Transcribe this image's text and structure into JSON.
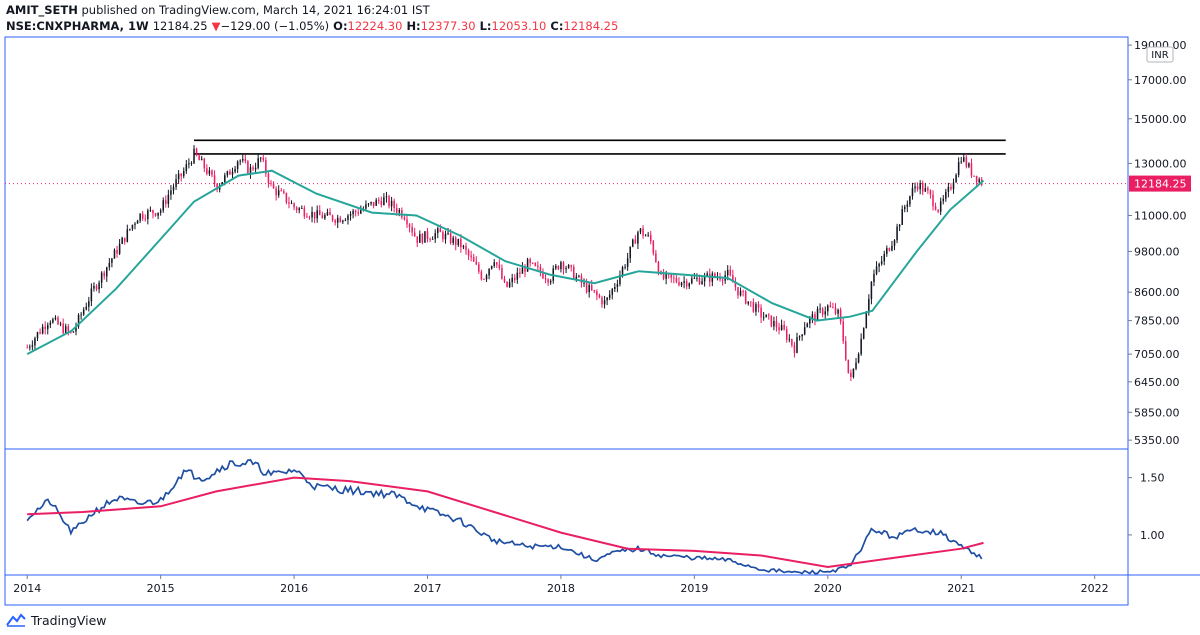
{
  "header": {
    "publisher": "AMIT_SETH",
    "published_text": "published on TradingView.com, March 14, 2021 16:24:01 IST",
    "symbol": "NSE:CNXPHARMA, 1W",
    "last_price": "12184.25",
    "change_arrow": "▼",
    "change": "−129.00 (−1.05%)",
    "o_label": "O:",
    "o_value": "12224.30",
    "h_label": "H:",
    "h_value": "12377.30",
    "l_label": "L:",
    "l_value": "12053.10",
    "c_label": "C:",
    "c_value": "12184.25"
  },
  "colors": {
    "up": "#131722",
    "down": "#e91e63",
    "ma": "#26a69a",
    "ratio": "#1f4fa3",
    "ratio_ma": "#e91e63",
    "price_label_bg": "#e91e63",
    "hline": "#000000",
    "axis_border": "#2962ff"
  },
  "footer": {
    "brand": "TradingView"
  },
  "chart_data": [
    {
      "type": "candlestick",
      "timeframe": "1W",
      "currency": "INR",
      "current_price": 12184.25,
      "current_price_label": "12184.25",
      "y_scale": "log",
      "ylim": [
        5200,
        19500
      ],
      "y_ticks": [
        {
          "v": 19000,
          "t": "19000.00"
        },
        {
          "v": 17000,
          "t": "17000.00"
        },
        {
          "v": 15000,
          "t": "15000.00"
        },
        {
          "v": 13000,
          "t": "13000.00"
        },
        {
          "v": 11000,
          "t": "11000.00"
        },
        {
          "v": 9800,
          "t": "9800.00"
        },
        {
          "v": 8600,
          "t": "8600.00"
        },
        {
          "v": 7850,
          "t": "7850.00"
        },
        {
          "v": 7050,
          "t": "7050.00"
        },
        {
          "v": 6450,
          "t": "6450.00"
        },
        {
          "v": 5850,
          "t": "5850.00"
        },
        {
          "v": 5350,
          "t": "5350.00"
        }
      ],
      "horizontal_lines": [
        {
          "from": "2015-04",
          "to": "2021-05",
          "value": 14000
        },
        {
          "from": "2015-04",
          "to": "2021-05",
          "value": 13400
        }
      ],
      "price_path": [
        [
          "2014-01",
          7200
        ],
        [
          "2014-03",
          7900
        ],
        [
          "2014-05",
          7500
        ],
        [
          "2014-07",
          8700
        ],
        [
          "2014-09",
          9800
        ],
        [
          "2014-11",
          11000
        ],
        [
          "2015-01",
          11200
        ],
        [
          "2015-02",
          12000
        ],
        [
          "2015-03",
          12600
        ],
        [
          "2015-04",
          13400
        ],
        [
          "2015-05",
          12800
        ],
        [
          "2015-06",
          12100
        ],
        [
          "2015-07",
          12500
        ],
        [
          "2015-08",
          13200
        ],
        [
          "2015-09",
          12700
        ],
        [
          "2015-10",
          13200
        ],
        [
          "2015-11",
          12000
        ],
        [
          "2015-12",
          11700
        ],
        [
          "2016-01",
          11300
        ],
        [
          "2016-03",
          11000
        ],
        [
          "2016-05",
          10900
        ],
        [
          "2016-07",
          11200
        ],
        [
          "2016-09",
          11600
        ],
        [
          "2016-11",
          11000
        ],
        [
          "2016-12",
          10200
        ],
        [
          "2017-02",
          10400
        ],
        [
          "2017-04",
          10000
        ],
        [
          "2017-06",
          9000
        ],
        [
          "2017-07",
          9600
        ],
        [
          "2017-08",
          8700
        ],
        [
          "2017-10",
          9400
        ],
        [
          "2017-12",
          9000
        ],
        [
          "2018-01",
          9500
        ],
        [
          "2018-03",
          8800
        ],
        [
          "2018-05",
          8300
        ],
        [
          "2018-06",
          8900
        ],
        [
          "2018-07",
          9600
        ],
        [
          "2018-08",
          10500
        ],
        [
          "2018-09",
          10200
        ],
        [
          "2018-10",
          9000
        ],
        [
          "2018-12",
          8900
        ],
        [
          "2019-02",
          9000
        ],
        [
          "2019-04",
          9100
        ],
        [
          "2019-05",
          8600
        ],
        [
          "2019-07",
          8000
        ],
        [
          "2019-09",
          7600
        ],
        [
          "2019-10",
          7200
        ],
        [
          "2019-11",
          7800
        ],
        [
          "2020-01",
          8200
        ],
        [
          "2020-02",
          8000
        ],
        [
          "2020-03",
          6400
        ],
        [
          "2020-04",
          7400
        ],
        [
          "2020-05",
          9000
        ],
        [
          "2020-06",
          9600
        ],
        [
          "2020-07",
          10300
        ],
        [
          "2020-08",
          11400
        ],
        [
          "2020-09",
          12200
        ],
        [
          "2020-10",
          11800
        ],
        [
          "2020-11",
          11200
        ],
        [
          "2020-12",
          12000
        ],
        [
          "2021-01",
          13300
        ],
        [
          "2021-02",
          12600
        ],
        [
          "2021-03",
          12184
        ]
      ],
      "moving_average": [
        [
          "2014-01",
          7050
        ],
        [
          "2014-05",
          7600
        ],
        [
          "2014-09",
          8700
        ],
        [
          "2015-01",
          10200
        ],
        [
          "2015-04",
          11500
        ],
        [
          "2015-08",
          12500
        ],
        [
          "2015-11",
          12700
        ],
        [
          "2016-03",
          11800
        ],
        [
          "2016-08",
          11100
        ],
        [
          "2016-12",
          11000
        ],
        [
          "2017-04",
          10300
        ],
        [
          "2017-08",
          9500
        ],
        [
          "2017-12",
          9100
        ],
        [
          "2018-04",
          8850
        ],
        [
          "2018-08",
          9200
        ],
        [
          "2018-12",
          9100
        ],
        [
          "2019-04",
          9000
        ],
        [
          "2019-08",
          8300
        ],
        [
          "2019-12",
          7850
        ],
        [
          "2020-03",
          7950
        ],
        [
          "2020-05",
          8100
        ],
        [
          "2020-09",
          9800
        ],
        [
          "2020-12",
          11200
        ],
        [
          "2021-03",
          12300
        ]
      ]
    },
    {
      "type": "line",
      "ylim": [
        0.65,
        1.75
      ],
      "y_ticks": [
        {
          "v": 1.5,
          "t": "1.50"
        },
        {
          "v": 1.0,
          "t": "1.00"
        }
      ],
      "series": [
        {
          "role": "ratio",
          "values": [
            [
              "2014-01",
              1.15
            ],
            [
              "2014-03",
              1.3
            ],
            [
              "2014-05",
              1.02
            ],
            [
              "2014-07",
              1.2
            ],
            [
              "2014-09",
              1.32
            ],
            [
              "2014-11",
              1.27
            ],
            [
              "2015-01",
              1.3
            ],
            [
              "2015-03",
              1.55
            ],
            [
              "2015-05",
              1.5
            ],
            [
              "2015-07",
              1.62
            ],
            [
              "2015-09",
              1.63
            ],
            [
              "2015-11",
              1.52
            ],
            [
              "2016-01",
              1.57
            ],
            [
              "2016-03",
              1.42
            ],
            [
              "2016-05",
              1.4
            ],
            [
              "2016-07",
              1.38
            ],
            [
              "2016-10",
              1.35
            ],
            [
              "2017-01",
              1.22
            ],
            [
              "2017-04",
              1.12
            ],
            [
              "2017-07",
              0.95
            ],
            [
              "2017-10",
              0.9
            ],
            [
              "2018-01",
              0.9
            ],
            [
              "2018-04",
              0.78
            ],
            [
              "2018-06",
              0.85
            ],
            [
              "2018-08",
              0.88
            ],
            [
              "2018-10",
              0.82
            ],
            [
              "2019-01",
              0.8
            ],
            [
              "2019-04",
              0.78
            ],
            [
              "2019-07",
              0.7
            ],
            [
              "2019-10",
              0.67
            ],
            [
              "2020-01",
              0.68
            ],
            [
              "2020-03",
              0.72
            ],
            [
              "2020-05",
              1.05
            ],
            [
              "2020-07",
              0.98
            ],
            [
              "2020-09",
              1.05
            ],
            [
              "2020-11",
              1.02
            ],
            [
              "2021-01",
              0.9
            ],
            [
              "2021-03",
              0.8
            ]
          ]
        },
        {
          "role": "ratio_average",
          "values": [
            [
              "2014-01",
              1.18
            ],
            [
              "2014-06",
              1.2
            ],
            [
              "2015-01",
              1.25
            ],
            [
              "2015-06",
              1.38
            ],
            [
              "2016-01",
              1.5
            ],
            [
              "2016-06",
              1.47
            ],
            [
              "2017-01",
              1.38
            ],
            [
              "2017-07",
              1.2
            ],
            [
              "2018-01",
              1.02
            ],
            [
              "2018-07",
              0.88
            ],
            [
              "2019-01",
              0.86
            ],
            [
              "2019-07",
              0.82
            ],
            [
              "2020-01",
              0.72
            ],
            [
              "2020-07",
              0.8
            ],
            [
              "2021-01",
              0.88
            ],
            [
              "2021-03",
              0.93
            ]
          ]
        }
      ]
    }
  ],
  "x_axis": {
    "ticks": [
      {
        "v": "2014",
        "t": "2014"
      },
      {
        "v": "2015",
        "t": "2015"
      },
      {
        "v": "2016",
        "t": "2016"
      },
      {
        "v": "2017",
        "t": "2017"
      },
      {
        "v": "2018",
        "t": "2018"
      },
      {
        "v": "2019",
        "t": "2019"
      },
      {
        "v": "2020",
        "t": "2020"
      },
      {
        "v": "2021",
        "t": "2021"
      },
      {
        "v": "2022",
        "t": "2022"
      }
    ],
    "range": [
      "2013-11",
      "2022-04"
    ]
  }
}
